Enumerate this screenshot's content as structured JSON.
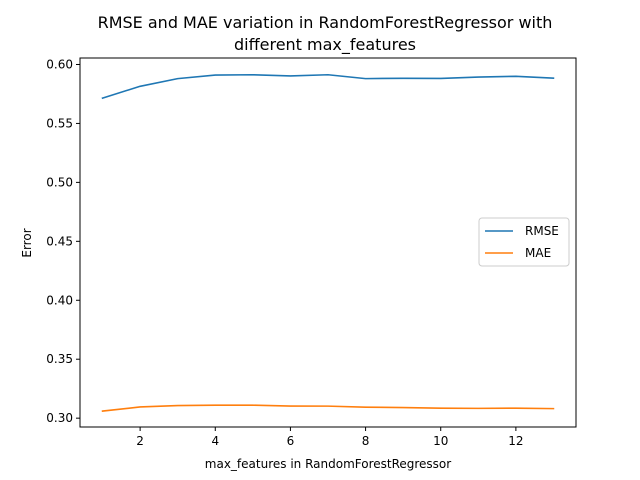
{
  "chart_data": {
    "type": "line",
    "title": "RMSE and MAE variation in RandomForestRegressor with different max_features",
    "title_lines": [
      "RMSE and MAE variation in RandomForestRegressor with",
      "different max_features"
    ],
    "xlabel": "max_features in RandomForestRegressor",
    "ylabel": "Error",
    "xlim": [
      0.4,
      13.6
    ],
    "ylim": [
      0.2925,
      0.6055
    ],
    "xticks": [
      2,
      4,
      6,
      8,
      10,
      12
    ],
    "yticks": [
      0.3,
      0.35,
      0.4,
      0.45,
      0.5,
      0.55,
      0.6
    ],
    "grid": false,
    "legend_position": "center-right",
    "x": [
      1,
      2,
      3,
      4,
      5,
      6,
      7,
      8,
      9,
      10,
      11,
      12,
      13
    ],
    "series": [
      {
        "name": "RMSE",
        "color": "#1f77b4",
        "values": [
          0.5715,
          0.5815,
          0.588,
          0.591,
          0.5913,
          0.5903,
          0.5913,
          0.588,
          0.5883,
          0.5882,
          0.5893,
          0.59,
          0.5884
        ]
      },
      {
        "name": "MAE",
        "color": "#ff7f0e",
        "values": [
          0.306,
          0.3095,
          0.3107,
          0.311,
          0.311,
          0.3103,
          0.3102,
          0.3093,
          0.309,
          0.3085,
          0.3083,
          0.3085,
          0.3081
        ]
      }
    ]
  }
}
